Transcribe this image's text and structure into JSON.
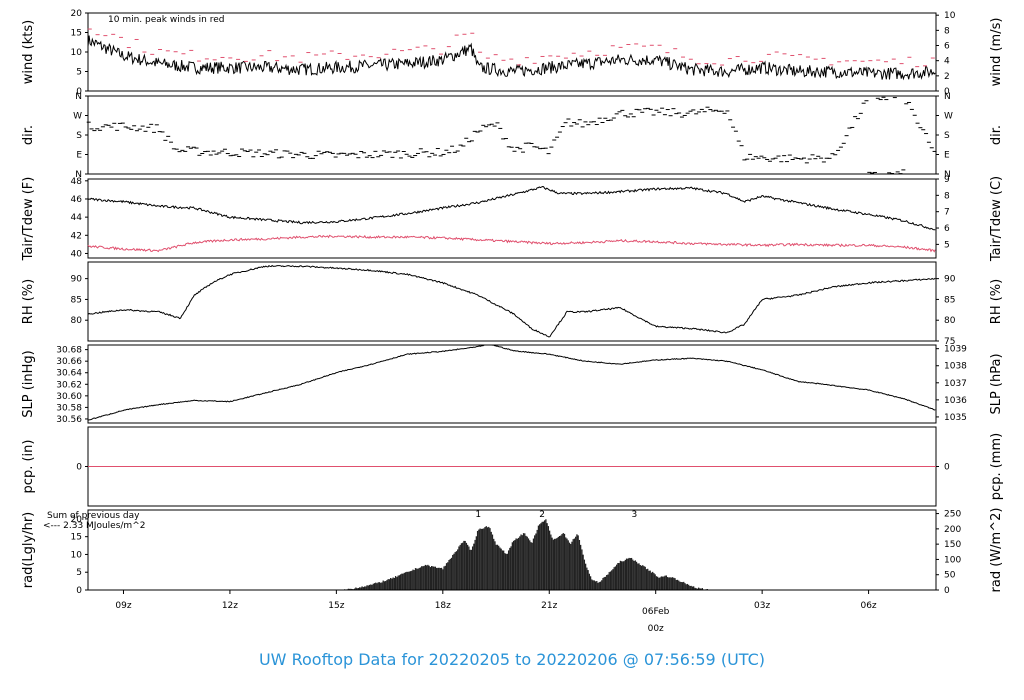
{
  "title": "UW Rooftop Data for 20220205  to  20220206 @ 07:56:59  (UTC)",
  "colors": {
    "series": "#000000",
    "peak": "#e0506e",
    "date": "#d94c6c",
    "solar": "#a020d8",
    "title": "#2b94d8"
  },
  "x_axis": {
    "ticks": [
      "09z",
      "12z",
      "15z",
      "18z",
      "21z",
      "00z",
      "03z",
      "06z"
    ],
    "tick_hours": [
      9,
      12,
      15,
      18,
      21,
      24,
      27,
      30
    ],
    "range_hours": [
      8.0,
      31.9
    ],
    "date_label": "06Feb",
    "date_sublabel": "00z"
  },
  "chart_data": [
    {
      "type": "line",
      "name": "wind",
      "ylabel": "wind (kts)",
      "ylabel_right": "wind (m/s)",
      "annotation": "10 min. peak winds in red",
      "ylim": [
        0,
        20
      ],
      "yticks": [
        "0",
        "5",
        "10",
        "15",
        "20"
      ],
      "yticks_right": [
        "0",
        "2",
        "4",
        "6",
        "8",
        "10"
      ],
      "series": [
        {
          "name": "wind speed",
          "x": [
            8,
            9,
            10,
            11,
            12,
            13,
            14,
            15,
            16,
            17,
            18,
            18.8,
            19,
            20,
            21,
            22,
            23,
            24,
            25,
            26,
            27,
            28,
            29,
            30,
            31,
            31.9
          ],
          "y": [
            13,
            9,
            7,
            6,
            6,
            6,
            5.5,
            6,
            6.5,
            7,
            8,
            11,
            6,
            5,
            6,
            7,
            8,
            8,
            5.5,
            5,
            6,
            5,
            5,
            4.5,
            4.5,
            5
          ]
        },
        {
          "name": "10 min. peak",
          "x": [
            8,
            9,
            10,
            11,
            12,
            13,
            14,
            15,
            16,
            17,
            18,
            18.8,
            19,
            20,
            21,
            22,
            23,
            24,
            25,
            26,
            27,
            28,
            29,
            30,
            31,
            31.9
          ],
          "y": [
            17,
            13,
            10,
            9,
            9,
            9,
            8.5,
            9,
            9.5,
            10,
            11,
            15,
            9,
            8,
            9,
            10,
            11,
            11,
            8.5,
            8,
            9,
            8,
            8,
            7.5,
            7.5,
            8
          ]
        }
      ]
    },
    {
      "type": "scatter",
      "name": "dir",
      "ylabel": "dir.",
      "ylabel_right": "dir.",
      "ylim": [
        0,
        360
      ],
      "yticks": [
        "N",
        "E",
        "S",
        "W",
        "N"
      ],
      "series": [
        {
          "name": "direction",
          "x": [
            8,
            9,
            10,
            10.5,
            11,
            12,
            13,
            14,
            15,
            16,
            17,
            18,
            18.5,
            19,
            19.5,
            20,
            20.5,
            21,
            21.5,
            22,
            23,
            24,
            25,
            26,
            26.5,
            27,
            28,
            29,
            30,
            31,
            31.9
          ],
          "y": [
            220,
            220,
            210,
            110,
            105,
            100,
            95,
            90,
            85,
            90,
            95,
            100,
            120,
            200,
            230,
            110,
            130,
            100,
            240,
            230,
            280,
            285,
            280,
            300,
            80,
            75,
            70,
            75,
            350,
            360,
            80
          ]
        }
      ]
    },
    {
      "type": "line",
      "name": "temp",
      "ylabel": "Tair/Tdew (F)",
      "ylabel_right": "Tair/Tdew (C)",
      "ylim": [
        39.5,
        48.2
      ],
      "yticks": [
        "40",
        "42",
        "44",
        "46",
        "48"
      ],
      "yticks_right": [
        "5",
        "6",
        "7",
        "8",
        "9"
      ],
      "series": [
        {
          "name": "Tair",
          "x": [
            8,
            9,
            10,
            11,
            12,
            13,
            14,
            15,
            16,
            17,
            18,
            19,
            20,
            20.8,
            21.3,
            22,
            23,
            24,
            25,
            26,
            26.5,
            27,
            28,
            29,
            30,
            31,
            31.9
          ],
          "y": [
            46,
            45.7,
            45.2,
            45,
            44,
            43.7,
            43.4,
            43.5,
            43.9,
            44.4,
            45,
            45.6,
            46.5,
            47.3,
            46.6,
            46.6,
            46.8,
            47.1,
            47.2,
            46.6,
            45.7,
            46.3,
            45.6,
            44.9,
            44.3,
            43.6,
            42.6
          ]
        },
        {
          "name": "Tdew",
          "x": [
            8,
            9,
            10,
            11,
            12,
            13,
            14,
            15,
            16,
            17,
            18,
            19,
            20,
            21,
            22,
            23,
            24,
            25,
            26,
            27,
            28,
            29,
            30,
            31,
            31.9
          ],
          "y": [
            40.8,
            40.5,
            40.3,
            41.2,
            41.5,
            41.6,
            41.8,
            41.9,
            41.8,
            41.8,
            41.7,
            41.5,
            41.3,
            41.1,
            41.2,
            41.4,
            41.3,
            41.1,
            41.0,
            40.9,
            41.0,
            40.9,
            40.9,
            40.7,
            40.3
          ]
        }
      ]
    },
    {
      "type": "line",
      "name": "rh",
      "ylabel": "RH (%)",
      "ylabel_right": "RH (%)",
      "ylim": [
        75,
        94
      ],
      "yticks": [
        "80",
        "85",
        "90"
      ],
      "yticks_right": [
        "75",
        "80",
        "85",
        "90"
      ],
      "series": [
        {
          "name": "RH",
          "x": [
            8,
            9,
            10,
            10.6,
            11,
            11.5,
            12,
            13,
            14,
            15,
            16,
            17,
            18,
            19,
            20,
            20.5,
            21,
            21.5,
            22,
            23,
            24,
            25,
            26,
            26.5,
            27,
            28,
            29,
            30,
            31,
            31.9
          ],
          "y": [
            81.5,
            82.5,
            82,
            80.5,
            86,
            89,
            91,
            93,
            93,
            92.5,
            92,
            91,
            89,
            86,
            81.5,
            78,
            76,
            82,
            82,
            83,
            78.5,
            78,
            77,
            79,
            85,
            86,
            88,
            89,
            89.5,
            90
          ]
        }
      ]
    },
    {
      "type": "line",
      "name": "slp",
      "ylabel": "SLP (inHg)",
      "ylabel_right": "SLP (hPa)",
      "ylim": [
        30.553,
        30.688
      ],
      "yticks": [
        "30.56",
        "30.58",
        "30.60",
        "30.62",
        "30.64",
        "30.66",
        "30.68"
      ],
      "yticks_right": [
        "1035",
        "1036",
        "1037",
        "1038",
        "1039"
      ],
      "series": [
        {
          "name": "SLP",
          "x": [
            8,
            9,
            10,
            11,
            12,
            13,
            14,
            15,
            16,
            17,
            18,
            19,
            19.3,
            20,
            21,
            22,
            23,
            24,
            25,
            26,
            27,
            28,
            29,
            30,
            31,
            31.9
          ],
          "y": [
            30.558,
            30.575,
            30.585,
            30.592,
            30.59,
            30.605,
            30.62,
            30.64,
            30.655,
            30.672,
            30.677,
            30.685,
            30.69,
            30.678,
            30.672,
            30.66,
            30.655,
            30.662,
            30.665,
            30.66,
            30.645,
            30.625,
            30.618,
            30.61,
            30.595,
            30.575
          ]
        }
      ]
    },
    {
      "type": "line",
      "name": "pcp",
      "ylabel": "pcp. (in)",
      "ylabel_right": "pcp. (mm)",
      "ylim": [
        -1,
        1
      ],
      "yticks": [
        "0"
      ],
      "yticks_right": [
        "0"
      ],
      "series": [
        {
          "name": "precip",
          "x": [
            8,
            31.9
          ],
          "y": [
            0,
            0
          ]
        }
      ]
    },
    {
      "type": "area",
      "name": "rad",
      "ylabel": "rad(Lgly/hr)",
      "ylabel_right": "rad (W/m^2)",
      "ylim": [
        0,
        22.5
      ],
      "yticks": [
        "0",
        "5",
        "10",
        "15",
        "20"
      ],
      "yticks_right": [
        "0",
        "50",
        "100",
        "150",
        "200",
        "250"
      ],
      "annotation_lines": [
        "Sum of previous day",
        "<--- 2.33 MJoules/m^2"
      ],
      "markers": [
        {
          "label": "1",
          "x": 19.0
        },
        {
          "label": "2",
          "x": 20.8
        },
        {
          "label": "3",
          "x": 23.4
        }
      ],
      "series": [
        {
          "name": "radiation",
          "x": [
            15.2,
            15.5,
            16,
            16.5,
            17,
            17.5,
            18,
            18.3,
            18.6,
            18.8,
            19,
            19.3,
            19.5,
            19.8,
            20,
            20.3,
            20.5,
            20.7,
            20.9,
            21.1,
            21.4,
            21.6,
            21.8,
            22,
            22.2,
            22.4,
            22.7,
            23,
            23.3,
            23.6,
            23.9,
            24.1,
            24.3,
            24.6,
            24.9,
            25.2,
            25.5
          ],
          "y": [
            0,
            0.5,
            1.5,
            3,
            5,
            7,
            6,
            10,
            14,
            11,
            17,
            18,
            13,
            10,
            14,
            16,
            13,
            18,
            20,
            14,
            16,
            13,
            16,
            8,
            3,
            2,
            5,
            8,
            9,
            7,
            5,
            3.5,
            4,
            3,
            1.5,
            0.5,
            0
          ]
        }
      ]
    }
  ]
}
